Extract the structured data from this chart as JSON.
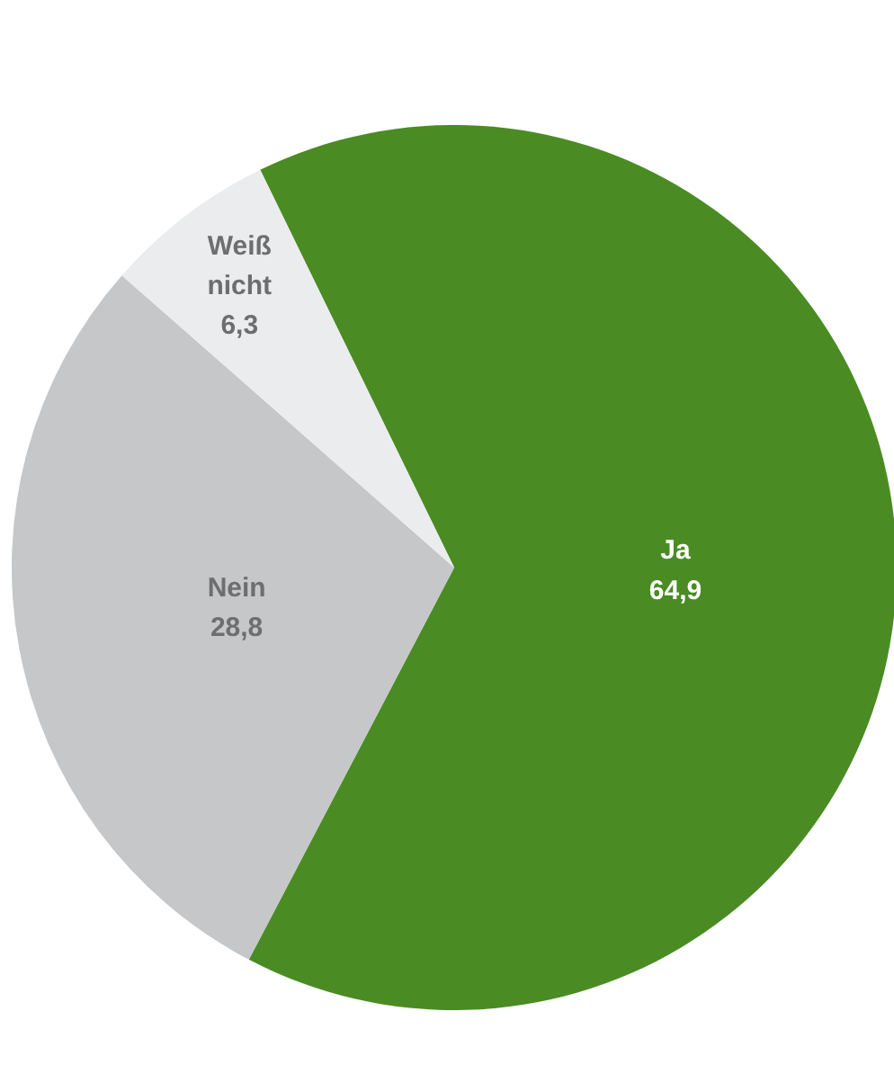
{
  "chart_data": {
    "type": "pie",
    "categories": [
      "Ja",
      "Nein",
      "Weiß nicht"
    ],
    "values": [
      64.9,
      28.8,
      6.3
    ],
    "colors": [
      "#4a8c23",
      "#c6c7c9",
      "#ebeced"
    ],
    "value_labels": [
      "64,9",
      "28,8",
      "6,3"
    ],
    "legend": false
  }
}
